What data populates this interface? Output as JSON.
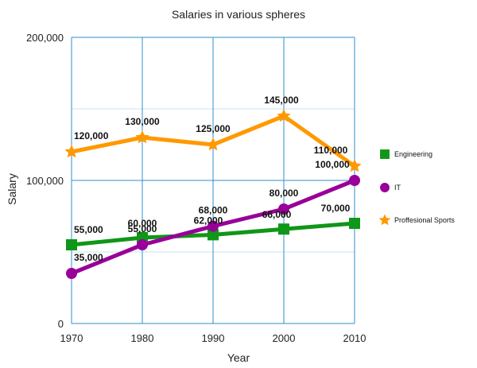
{
  "chart_data": {
    "type": "line",
    "title": "Salaries in various spheres",
    "xlabel": "Year",
    "ylabel": "Salary",
    "x": [
      1970,
      1980,
      1990,
      2000,
      2010
    ],
    "xticks": [
      "1970",
      "1980",
      "1990",
      "2000",
      "2010"
    ],
    "ylim": [
      0,
      200000
    ],
    "yticks": [
      {
        "value": 0,
        "label": "0"
      },
      {
        "value": 100000,
        "label": "100,000"
      },
      {
        "value": 200000,
        "label": "200,000"
      }
    ],
    "minor_gridlines": [
      50000,
      150000
    ],
    "grid": true,
    "legend_position": "right",
    "series": [
      {
        "name": "Engineering",
        "color": "#109618",
        "marker": "square",
        "values": [
          55000,
          60000,
          62000,
          66000,
          70000
        ],
        "labels": [
          "55,000",
          "60,000",
          "62,000",
          "66,000",
          "70,000"
        ]
      },
      {
        "name": "IT",
        "color": "#990099",
        "marker": "circle",
        "values": [
          35000,
          55000,
          68000,
          80000,
          100000
        ],
        "labels": [
          "35,000",
          "55,000",
          "68,000",
          "80,000",
          "100,000"
        ]
      },
      {
        "name": "Proffesional Sports",
        "color": "#ff9900",
        "marker": "star",
        "values": [
          120000,
          130000,
          125000,
          145000,
          110000
        ],
        "labels": [
          "120,000",
          "130,000",
          "125,000",
          "145,000",
          "110,000"
        ]
      }
    ]
  }
}
